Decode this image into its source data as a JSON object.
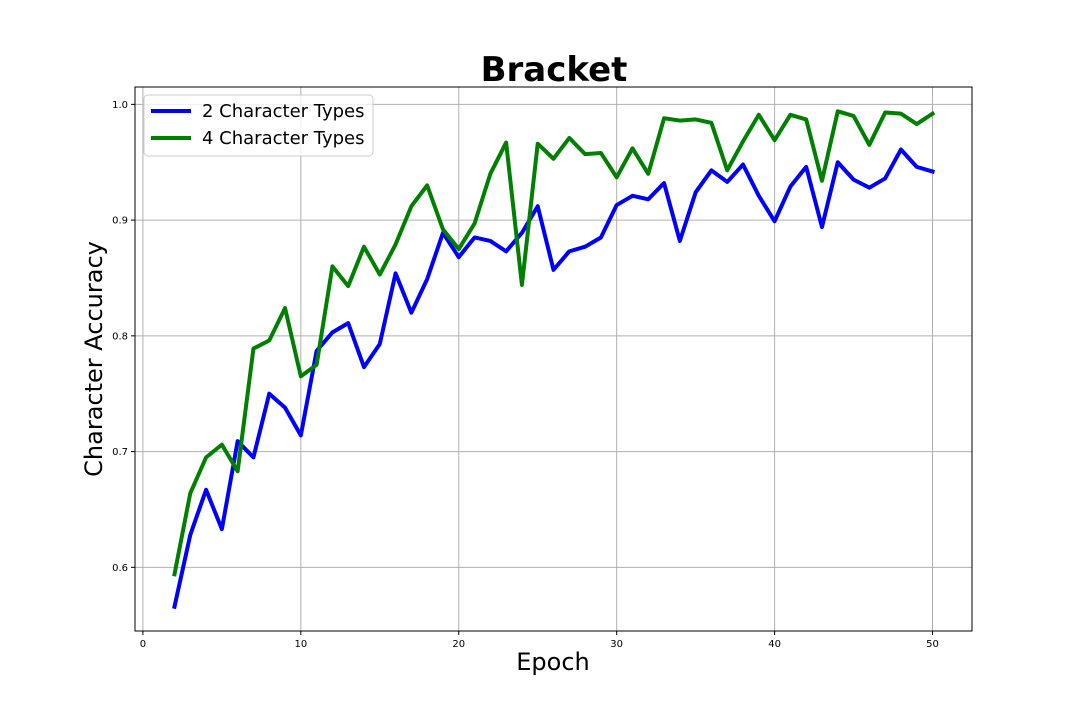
{
  "chart_data": {
    "type": "line",
    "title": "Bracket",
    "xlabel": "Epoch",
    "ylabel": "Character Accuracy",
    "xlim": [
      -0.5,
      52.5
    ],
    "ylim": [
      0.545,
      1.015
    ],
    "xticks": [
      0,
      10,
      20,
      30,
      40,
      50
    ],
    "xtick_labels": [
      "0",
      "10",
      "20",
      "30",
      "40",
      "50"
    ],
    "yticks": [
      0.6,
      0.7,
      0.8,
      0.9,
      1.0
    ],
    "ytick_labels": [
      "0.6",
      "0.7",
      "0.8",
      "0.9",
      "1.0"
    ],
    "grid": true,
    "legend_position": "upper-left",
    "x": [
      2,
      3,
      4,
      5,
      6,
      7,
      8,
      9,
      10,
      11,
      12,
      13,
      14,
      15,
      16,
      17,
      18,
      19,
      20,
      21,
      22,
      23,
      24,
      25,
      26,
      27,
      28,
      29,
      30,
      31,
      32,
      33,
      34,
      35,
      36,
      37,
      38,
      39,
      40,
      41,
      42,
      43,
      44,
      45,
      46,
      47,
      48,
      49,
      50
    ],
    "series": [
      {
        "name": "2 Character Types",
        "color": "#0000ff",
        "values": [
          0.566,
          0.628,
          0.667,
          0.633,
          0.709,
          0.695,
          0.75,
          0.738,
          0.714,
          0.787,
          0.803,
          0.811,
          0.773,
          0.793,
          0.854,
          0.82,
          0.849,
          0.889,
          0.868,
          0.885,
          0.882,
          0.873,
          0.889,
          0.912,
          0.857,
          0.873,
          0.877,
          0.885,
          0.913,
          0.921,
          0.918,
          0.932,
          0.882,
          0.924,
          0.943,
          0.933,
          0.948,
          0.921,
          0.899,
          0.929,
          0.946,
          0.894,
          0.95,
          0.935,
          0.928,
          0.936,
          0.961,
          0.946,
          0.942
        ]
      },
      {
        "name": "4 Character Types",
        "color": "#008000",
        "values": [
          0.594,
          0.664,
          0.695,
          0.706,
          0.683,
          0.789,
          0.796,
          0.824,
          0.765,
          0.775,
          0.86,
          0.843,
          0.877,
          0.853,
          0.879,
          0.912,
          0.93,
          0.892,
          0.875,
          0.897,
          0.94,
          0.967,
          0.844,
          0.966,
          0.953,
          0.971,
          0.957,
          0.958,
          0.937,
          0.962,
          0.94,
          0.988,
          0.986,
          0.987,
          0.984,
          0.943,
          0.968,
          0.991,
          0.969,
          0.991,
          0.987,
          0.934,
          0.994,
          0.99,
          0.965,
          0.993,
          0.992,
          0.983,
          0.992
        ]
      }
    ]
  }
}
